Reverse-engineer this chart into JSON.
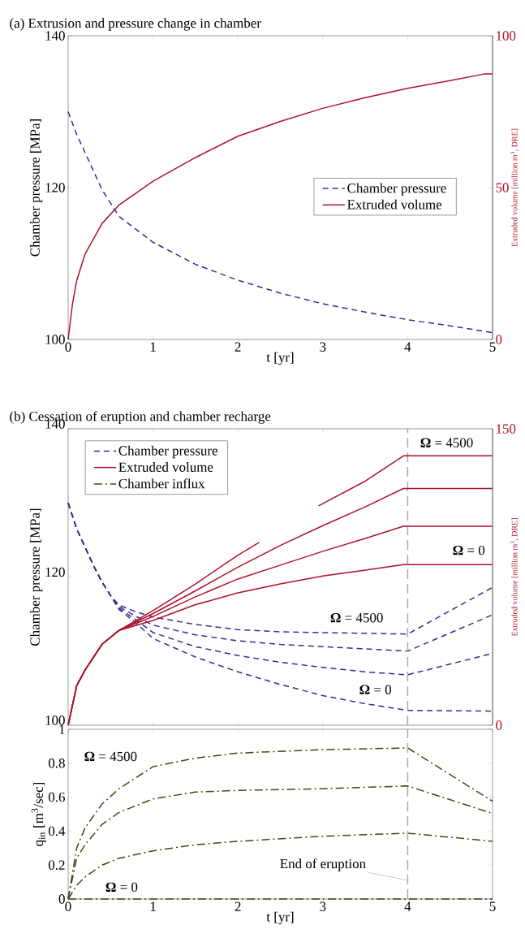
{
  "chart_data": [
    {
      "type": "line",
      "title": "(a) Extrusion and pressure change in chamber",
      "xlabel": "t [yr]",
      "ylabel": "Chamber pressure [MPa]",
      "y2label": "Extruded volume [million m$^{3}$,  DRE]",
      "xlim": [
        0,
        5
      ],
      "ylim": [
        100,
        140
      ],
      "y2lim": [
        0,
        100
      ],
      "xticks": [
        0,
        1,
        2,
        3,
        4,
        5
      ],
      "yticks": [
        100,
        120,
        140
      ],
      "y2ticks": [
        0,
        50,
        100
      ],
      "legend": "right",
      "series": [
        {
          "name": "Chamber pressure",
          "color": "#3d2a8c",
          "line_style": "dashed",
          "x": [
            0,
            0.1,
            0.2,
            0.4,
            0.6,
            1,
            1.5,
            2,
            2.5,
            3,
            3.5,
            4,
            4.5,
            5
          ],
          "values": [
            130,
            127,
            124.6,
            119.7,
            116.2,
            112.8,
            109.9,
            107.8,
            106.1,
            104.7,
            103.6,
            102.6,
            101.8,
            100.9
          ]
        },
        {
          "name": "Extruded volume",
          "color": "#b0102a",
          "line_style": "solid",
          "axis": "y2",
          "x": [
            0,
            0.05,
            0.1,
            0.2,
            0.4,
            0.6,
            1,
            1.5,
            2,
            2.5,
            3,
            3.5,
            4,
            4.5,
            4.9,
            5
          ],
          "values": [
            0,
            11.5,
            19.3,
            28.2,
            38.2,
            44.3,
            52.1,
            59.9,
            66.9,
            71.8,
            76.1,
            79.6,
            82.7,
            85.2,
            87.4,
            87.4
          ]
        }
      ]
    },
    {
      "type": "line",
      "title": "(b) Cessation of eruption and chamber recharge",
      "ylabel": "Chamber pressure [MPa]",
      "y2label": "Extruded volume [million m$^{3}$,  DRE]",
      "xlim": [
        0,
        5
      ],
      "ylim": [
        100,
        140
      ],
      "y2lim": [
        0,
        150
      ],
      "xticks": [
        0,
        1,
        2,
        3,
        4,
        5
      ],
      "yticks": [
        100,
        120,
        140
      ],
      "y2ticks": [
        0,
        150
      ],
      "tick_labels": "y",
      "legend": "top left",
      "ref_lines": [
        {
          "axis": "x",
          "value": 4,
          "color": "#aaaaaa",
          "line_style": "dashed"
        }
      ],
      "annotations": [
        "**Ω** = 4500",
        "**Ω** = 0",
        "**Ω** = 4500",
        "**Ω** = 0"
      ],
      "series": [
        {
          "name": "Chamber pressure",
          "color": "#3d2a8c",
          "line_style": "dashed",
          "x": [
            0,
            0.1,
            0.2,
            0.3,
            0.4,
            0.5,
            0.6,
            0.8,
            1,
            1.5,
            2,
            2.5,
            3,
            3.5,
            4,
            5
          ],
          "values": [
            130,
            126.5,
            124,
            121.5,
            119.3,
            117.5,
            115.6,
            113.8,
            111.7,
            109.2,
            107.2,
            105.5,
            104,
            102.9,
            102,
            101.9
          ]
        },
        {
          "color": "#3d2a8c",
          "line_style": "dashed",
          "x": [
            0,
            0.1,
            0.2,
            0.3,
            0.4,
            0.5,
            0.6,
            0.8,
            1,
            1.5,
            2,
            2.5,
            3,
            3.5,
            4,
            5
          ],
          "values": [
            130,
            126.5,
            124,
            121.5,
            119.3,
            117.5,
            115.8,
            114.2,
            112.5,
            110.6,
            109.4,
            108.5,
            107.8,
            107.2,
            106.8,
            109.7
          ]
        },
        {
          "color": "#3d2a8c",
          "line_style": "dashed",
          "x": [
            0,
            0.1,
            0.2,
            0.3,
            0.4,
            0.5,
            0.6,
            0.8,
            1,
            1.5,
            2,
            2.5,
            3,
            3.5,
            4,
            5
          ],
          "values": [
            130,
            126.5,
            124,
            121.5,
            119.3,
            117.5,
            116,
            114.7,
            113.5,
            112.2,
            111.4,
            110.9,
            110.6,
            110.3,
            110,
            114.9
          ]
        },
        {
          "color": "#3d2a8c",
          "line_style": "dashed",
          "x": [
            0,
            0.1,
            0.2,
            0.3,
            0.4,
            0.5,
            0.6,
            0.8,
            1,
            1.5,
            2,
            2.5,
            3,
            3.5,
            4,
            5
          ],
          "values": [
            130,
            126.5,
            124,
            121.5,
            119.3,
            117.5,
            116.2,
            115.3,
            114.6,
            113.6,
            112.9,
            112.6,
            112.5,
            112.4,
            112.3,
            118.6
          ]
        },
        {
          "name": "Extruded volume",
          "color": "#b0102a",
          "line_style": "solid",
          "axis": "y2",
          "x": [
            0,
            0.1,
            0.2,
            0.4,
            0.6,
            1,
            1.5,
            2,
            2.5,
            3,
            3.5,
            3.95,
            5
          ],
          "values": [
            0,
            20,
            28,
            41,
            48,
            53,
            61,
            67,
            71.5,
            75.5,
            78.5,
            81.3,
            81.3
          ]
        },
        {
          "color": "#b0102a",
          "line_style": "solid",
          "axis": "y2",
          "x": [
            0,
            0.1,
            0.2,
            0.4,
            0.6,
            1,
            1.5,
            2,
            2.5,
            3,
            3.5,
            3.95,
            5
          ],
          "values": [
            0,
            20,
            28,
            41,
            48,
            55,
            65,
            74,
            81,
            88,
            94.5,
            100.7,
            100.7
          ]
        },
        {
          "color": "#b0102a",
          "line_style": "solid",
          "axis": "y2",
          "x": [
            0,
            0.1,
            0.2,
            0.4,
            0.6,
            1,
            1.5,
            2,
            2.5,
            3,
            3.5,
            3.95,
            5
          ],
          "values": [
            0,
            20,
            28,
            41,
            48,
            56.5,
            68,
            80,
            91,
            101,
            110.5,
            119.8,
            119.8
          ]
        },
        {
          "color": "#b0102a",
          "line_style": "solid",
          "axis": "y2",
          "x": [
            0,
            0.1,
            0.2,
            0.4,
            0.6,
            1,
            1.5,
            2,
            2.25,
            2.5,
            2.95,
            3.5,
            3.95,
            5
          ],
          "values": [
            0,
            20,
            28,
            41,
            48,
            58,
            71.5,
            86,
            92.5,
            null,
            111,
            123.5,
            136.3,
            136.3
          ]
        }
      ]
    },
    {
      "type": "line",
      "xlabel": "t [yr]",
      "ylabel": "q$_{in}$ [m$^{3}$/sec]",
      "xlim": [
        0,
        5
      ],
      "ylim": [
        0,
        1
      ],
      "xticks": [
        0,
        1,
        2,
        3,
        4,
        5
      ],
      "yticks": [
        0,
        0.2,
        0.4,
        0.6,
        0.8,
        1
      ],
      "ref_lines": [
        {
          "axis": "x",
          "value": 4,
          "color": "#aaaaaa",
          "line_style": "dashed"
        }
      ],
      "annotations": [
        "**Ω** = 4500",
        "**Ω** = 0",
        {
          "text": "End of eruption",
          "x": 4,
          "y": 0.11
        }
      ],
      "series": [
        {
          "name": "Chamber influx",
          "color": "#464616",
          "line_style": "dashdot",
          "x": [
            0,
            0.1,
            0.2,
            0.4,
            0.6,
            1,
            1.5,
            2,
            3,
            4,
            5
          ],
          "values": [
            0,
            0.3,
            0.42,
            0.56,
            0.65,
            0.78,
            0.83,
            0.86,
            0.88,
            0.89,
            0.576
          ]
        },
        {
          "color": "#464616",
          "line_style": "dashdot",
          "x": [
            0,
            0.1,
            0.2,
            0.4,
            0.6,
            1,
            1.5,
            2,
            3,
            4,
            5
          ],
          "values": [
            0,
            0.24,
            0.32,
            0.44,
            0.51,
            0.59,
            0.63,
            0.64,
            0.65,
            0.666,
            0.504
          ]
        },
        {
          "color": "#464616",
          "line_style": "dashdot",
          "x": [
            0,
            0.1,
            0.2,
            0.4,
            0.6,
            1,
            1.5,
            2,
            3,
            4,
            5
          ],
          "values": [
            0,
            0.08,
            0.13,
            0.2,
            0.24,
            0.284,
            0.32,
            0.34,
            0.37,
            0.388,
            0.34
          ]
        },
        {
          "color": "#464616",
          "line_style": "dashdot",
          "x": [
            0,
            5
          ],
          "values": [
            0,
            0
          ]
        }
      ]
    }
  ]
}
